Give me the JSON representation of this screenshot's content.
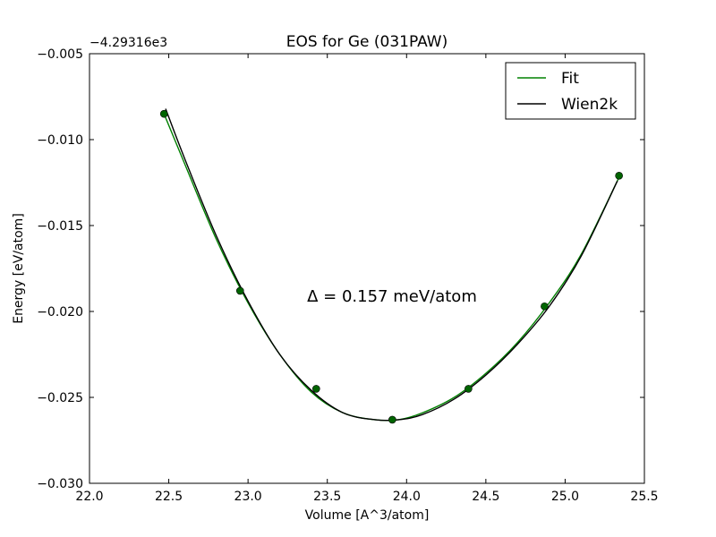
{
  "chart_data": {
    "type": "line",
    "title": "EOS for Ge (031PAW)",
    "xlabel": "Volume [A^3/atom]",
    "ylabel": "Energy [eV/atom]",
    "offset_label": "−4.29316e3",
    "annotation": "Δ = 0.157 meV/atom",
    "xlim": [
      22.0,
      25.5
    ],
    "ylim": [
      -0.03,
      -0.005
    ],
    "xticks": [
      22.0,
      22.5,
      23.0,
      23.5,
      24.0,
      24.5,
      25.0,
      25.5
    ],
    "xtick_labels": [
      "22.0",
      "22.5",
      "23.0",
      "23.5",
      "24.0",
      "24.5",
      "25.0",
      "25.5"
    ],
    "yticks": [
      -0.03,
      -0.025,
      -0.02,
      -0.015,
      -0.01,
      -0.005
    ],
    "ytick_labels": [
      "−0.030",
      "−0.025",
      "−0.020",
      "−0.015",
      "−0.010",
      "−0.005"
    ],
    "grid": false,
    "legend_position": "top-right",
    "series": [
      {
        "name": "Fit",
        "color": "#008000",
        "x": [
          22.47,
          22.6,
          22.8,
          23.0,
          23.2,
          23.4,
          23.6,
          23.8,
          23.95,
          24.1,
          24.3,
          24.5,
          24.7,
          24.9,
          25.1,
          25.34
        ],
        "y": [
          -0.0085,
          -0.0114,
          -0.0158,
          -0.0195,
          -0.0225,
          -0.0247,
          -0.0259,
          -0.0263,
          -0.0263,
          -0.0259,
          -0.025,
          -0.0236,
          -0.0218,
          -0.0195,
          -0.0167,
          -0.0122
        ]
      },
      {
        "name": "Wien2k",
        "color": "#000000",
        "x": [
          22.48,
          22.6,
          22.8,
          23.0,
          23.2,
          23.4,
          23.6,
          23.8,
          23.95,
          24.1,
          24.3,
          24.5,
          24.7,
          24.9,
          25.1,
          25.33
        ],
        "y": [
          -0.0082,
          -0.0111,
          -0.0156,
          -0.0194,
          -0.0225,
          -0.0246,
          -0.0259,
          -0.0263,
          -0.0263,
          -0.026,
          -0.0251,
          -0.0237,
          -0.0219,
          -0.0197,
          -0.0168,
          -0.0124
        ]
      }
    ],
    "points": {
      "color": "#006400",
      "x": [
        22.47,
        22.95,
        23.43,
        23.91,
        24.39,
        24.87,
        25.34
      ],
      "y": [
        -0.0085,
        -0.0188,
        -0.0245,
        -0.0263,
        -0.0245,
        -0.0197,
        -0.0121
      ]
    }
  }
}
